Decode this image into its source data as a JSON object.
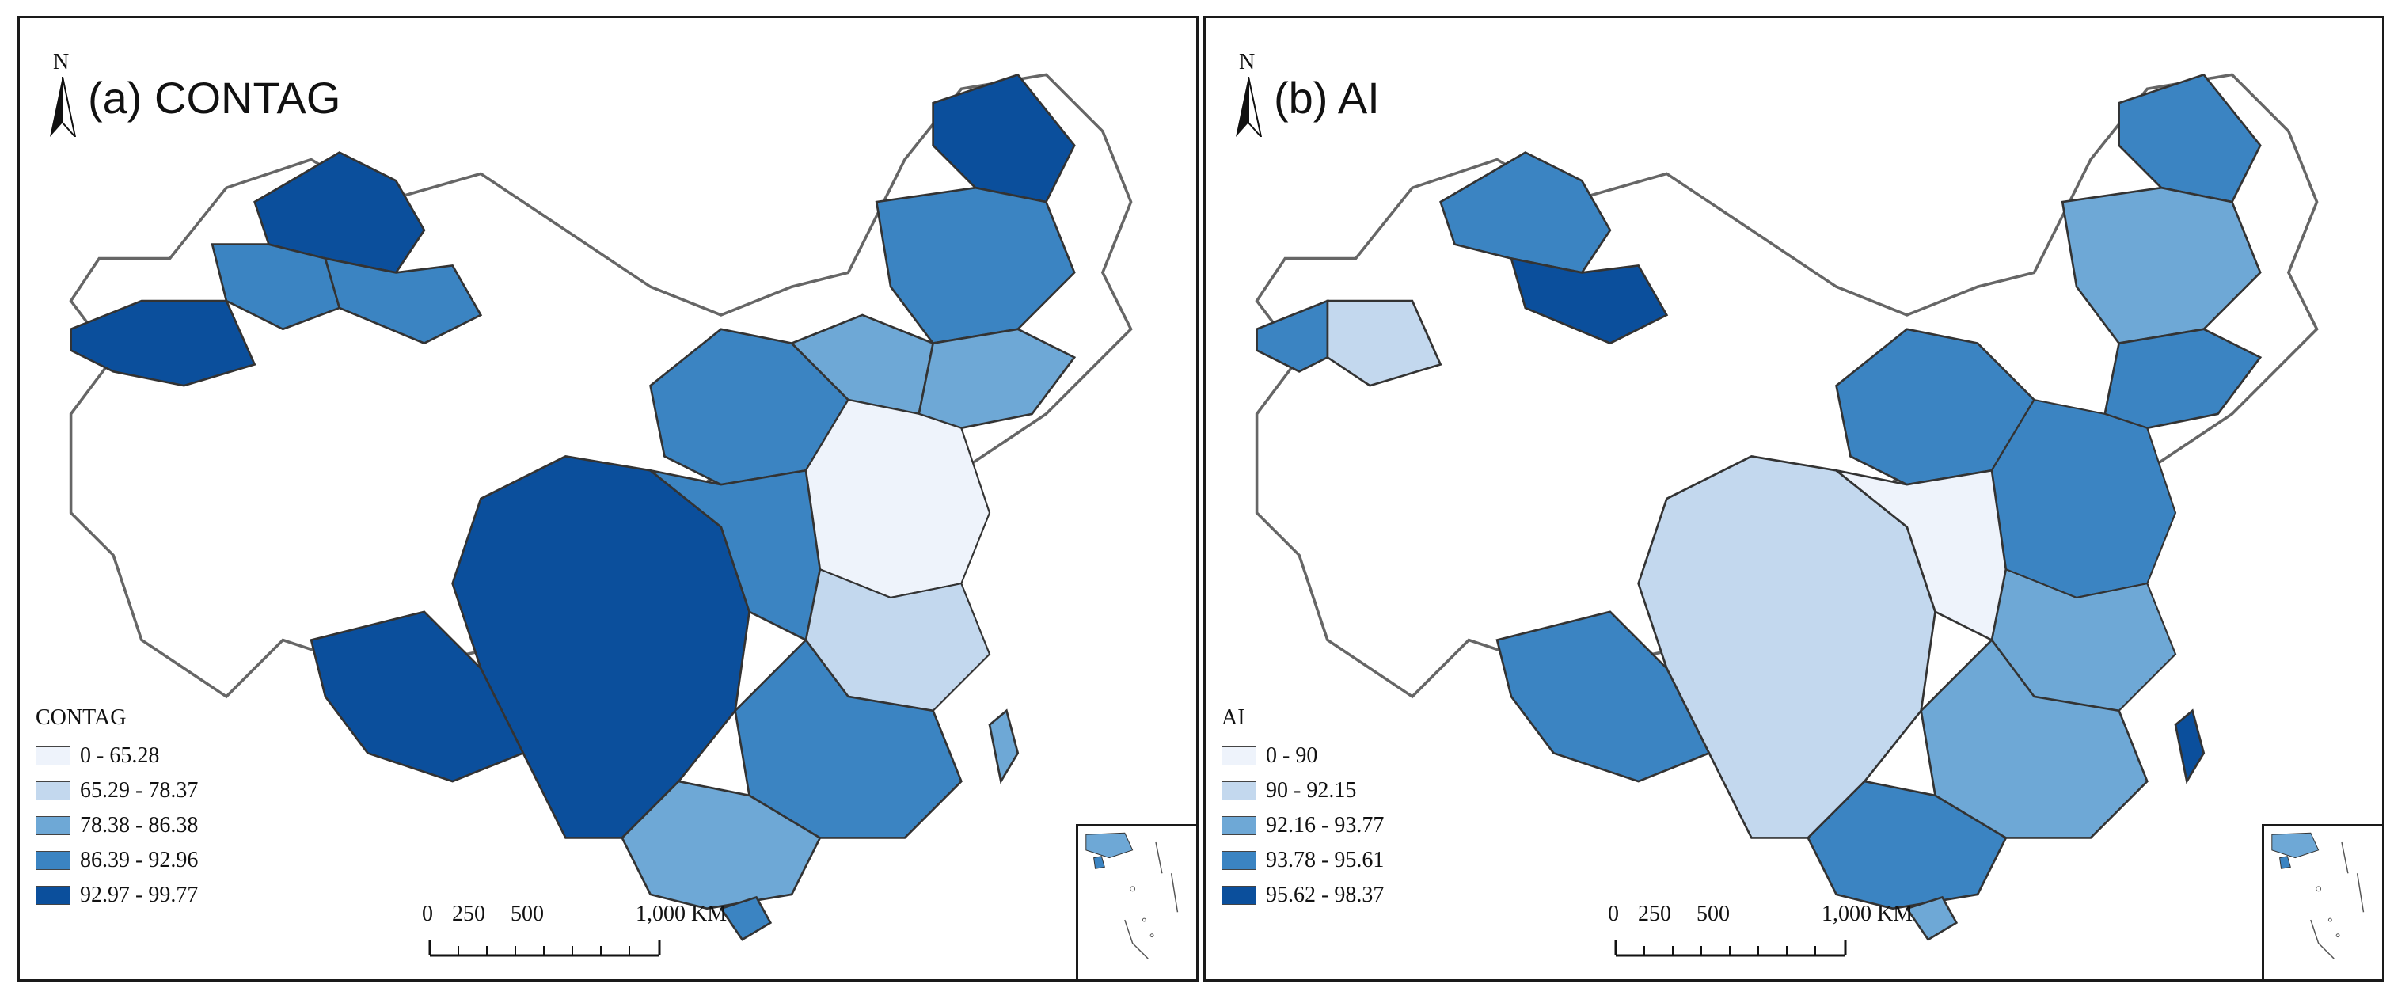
{
  "panels": [
    {
      "id": "a",
      "title": "(a) CONTAG",
      "north_label": "N",
      "legend": {
        "title": "CONTAG",
        "classes": [
          {
            "label": "0 - 65.28",
            "color": "#eef3fb"
          },
          {
            "label": "65.29 - 78.37",
            "color": "#c3d8ee"
          },
          {
            "label": "78.38 - 86.38",
            "color": "#6ea8d6"
          },
          {
            "label": "86.39 - 92.96",
            "color": "#3b84c2"
          },
          {
            "label": "92.97 - 99.77",
            "color": "#0b4f9c"
          }
        ]
      },
      "scale": {
        "labels": [
          "0",
          "250",
          "500",
          "1,000 KM"
        ]
      }
    },
    {
      "id": "b",
      "title": "(b) AI",
      "north_label": "N",
      "legend": {
        "title": "AI",
        "classes": [
          {
            "label": "0 - 90",
            "color": "#eef3fb"
          },
          {
            "label": "90 - 92.15",
            "color": "#c3d8ee"
          },
          {
            "label": "92.16 - 93.77",
            "color": "#6ea8d6"
          },
          {
            "label": "93.78 - 95.61",
            "color": "#3b84c2"
          },
          {
            "label": "95.62 - 98.37",
            "color": "#0b4f9c"
          }
        ]
      },
      "scale": {
        "labels": [
          "0",
          "250",
          "500",
          "1,000 KM"
        ]
      }
    }
  ],
  "colors": {
    "nodata": "#ffffff",
    "border": "#555555",
    "frame": "#1a1a1a"
  }
}
